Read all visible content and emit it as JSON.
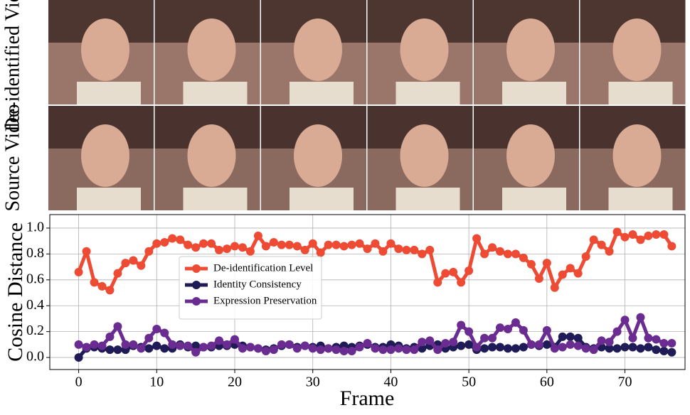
{
  "chart_data": {
    "type": "line",
    "row_labels": [
      "De-identified Video",
      "Source Video"
    ],
    "xlabel": "Frame",
    "ylabel": "Cosine Distance",
    "x": [
      0,
      1,
      2,
      3,
      4,
      5,
      6,
      7,
      8,
      9,
      10,
      11,
      12,
      13,
      14,
      15,
      16,
      17,
      18,
      19,
      20,
      21,
      22,
      23,
      24,
      25,
      26,
      27,
      28,
      29,
      30,
      31,
      32,
      33,
      34,
      35,
      36,
      37,
      38,
      39,
      40,
      41,
      42,
      43,
      44,
      45,
      46,
      47,
      48,
      49,
      50,
      51,
      52,
      53,
      54,
      55,
      56,
      57,
      58,
      59,
      60,
      61,
      62,
      63,
      64,
      65,
      66,
      67,
      68,
      69,
      70,
      71,
      72,
      73,
      74,
      75,
      76
    ],
    "series": [
      {
        "name": "De-identification Level",
        "color": "#ee4b35",
        "values": [
          0.66,
          0.82,
          0.58,
          0.55,
          0.52,
          0.65,
          0.73,
          0.75,
          0.71,
          0.82,
          0.88,
          0.89,
          0.92,
          0.91,
          0.87,
          0.85,
          0.88,
          0.88,
          0.83,
          0.84,
          0.86,
          0.85,
          0.82,
          0.94,
          0.86,
          0.89,
          0.87,
          0.87,
          0.86,
          0.83,
          0.88,
          0.81,
          0.87,
          0.87,
          0.86,
          0.87,
          0.88,
          0.84,
          0.88,
          0.82,
          0.88,
          0.84,
          0.83,
          0.83,
          0.8,
          0.83,
          0.58,
          0.65,
          0.66,
          0.58,
          0.67,
          0.92,
          0.8,
          0.85,
          0.82,
          0.8,
          0.8,
          0.77,
          0.72,
          0.61,
          0.73,
          0.54,
          0.64,
          0.69,
          0.65,
          0.78,
          0.91,
          0.87,
          0.82,
          0.97,
          0.93,
          0.95,
          0.91,
          0.94,
          0.95,
          0.95,
          0.86
        ]
      },
      {
        "name": "Identity Consistency",
        "color": "#1f1b57",
        "values": [
          0.0,
          0.07,
          0.08,
          0.07,
          0.06,
          0.06,
          0.06,
          0.09,
          0.08,
          0.07,
          0.09,
          0.07,
          0.07,
          0.1,
          0.08,
          0.09,
          0.08,
          0.08,
          0.09,
          0.09,
          0.1,
          0.09,
          0.08,
          0.07,
          0.06,
          0.07,
          0.09,
          0.1,
          0.08,
          0.09,
          0.08,
          0.09,
          0.07,
          0.08,
          0.09,
          0.08,
          0.09,
          0.1,
          0.08,
          0.08,
          0.1,
          0.09,
          0.07,
          0.08,
          0.07,
          0.09,
          0.1,
          0.07,
          0.08,
          0.09,
          0.1,
          0.06,
          0.07,
          0.08,
          0.08,
          0.07,
          0.07,
          0.08,
          0.1,
          0.09,
          0.1,
          0.08,
          0.16,
          0.16,
          0.15,
          0.08,
          0.07,
          0.08,
          0.07,
          0.07,
          0.08,
          0.08,
          0.07,
          0.08,
          0.06,
          0.05,
          0.04
        ]
      },
      {
        "name": "Expression Preservation",
        "color": "#6a2c90",
        "values": [
          0.1,
          0.08,
          0.1,
          0.09,
          0.16,
          0.24,
          0.1,
          0.1,
          0.07,
          0.15,
          0.22,
          0.19,
          0.1,
          0.09,
          0.09,
          0.04,
          0.08,
          0.09,
          0.13,
          0.1,
          0.14,
          0.07,
          0.08,
          0.07,
          0.05,
          0.06,
          0.1,
          0.1,
          0.07,
          0.09,
          0.07,
          0.06,
          0.07,
          0.06,
          0.05,
          0.05,
          0.08,
          0.11,
          0.07,
          0.06,
          0.06,
          0.07,
          0.06,
          0.06,
          0.12,
          0.13,
          0.06,
          0.11,
          0.12,
          0.25,
          0.2,
          0.08,
          0.15,
          0.15,
          0.23,
          0.22,
          0.27,
          0.21,
          0.1,
          0.1,
          0.21,
          0.07,
          0.08,
          0.1,
          0.09,
          0.07,
          0.06,
          0.13,
          0.12,
          0.2,
          0.29,
          0.15,
          0.31,
          0.15,
          0.14,
          0.11,
          0.11
        ]
      }
    ],
    "xlim": [
      -3.7,
      77.7
    ],
    "xticks": [
      0,
      10,
      20,
      30,
      40,
      50,
      60,
      70
    ],
    "ylim": [
      -0.093,
      1.104
    ],
    "yticks": [
      {
        "value": 0,
        "label": "0.0"
      },
      0.2,
      0.4,
      0.6,
      0.8,
      {
        "value": 1,
        "label": "1.0"
      }
    ],
    "grid": true,
    "legend": "center left"
  }
}
